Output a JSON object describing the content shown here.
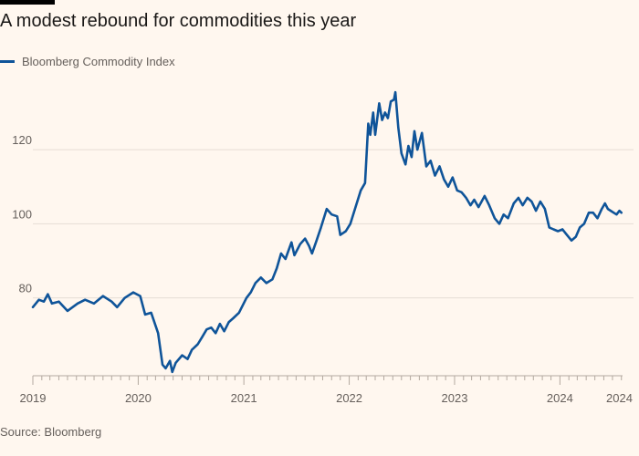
{
  "title": "A modest rebound for commodities this year",
  "source": "Source: Bloomberg",
  "colors": {
    "background": "#fff7ef",
    "line": "#0f5499",
    "grid": "#e6ddd4",
    "text": "#66605c"
  },
  "chart_data": {
    "type": "line",
    "title": "A modest rebound for commodities this year",
    "xlabel": "",
    "ylabel": "",
    "legend": {
      "placement": "top-left"
    },
    "grid": true,
    "ylim": [
      59,
      137
    ],
    "xlim": [
      "2019-01-01",
      "2024-08-05"
    ],
    "y_ticks": [
      80,
      100,
      120
    ],
    "x_ticks": [
      "2019",
      "2020",
      "2021",
      "2022",
      "2023",
      "2024",
      "2024"
    ],
    "x_tick_dates": [
      "2019-01-01",
      "2020-01-01",
      "2021-01-01",
      "2022-01-01",
      "2023-01-01",
      "2024-01-01",
      "2024-07-25"
    ],
    "series": [
      {
        "name": "Bloomberg Commodity Index",
        "color": "#0f5499",
        "points": [
          [
            "2019-01-01",
            77.5
          ],
          [
            "2019-01-22",
            79.5
          ],
          [
            "2019-02-08",
            79.0
          ],
          [
            "2019-02-22",
            81.0
          ],
          [
            "2019-03-08",
            78.5
          ],
          [
            "2019-04-01",
            79.0
          ],
          [
            "2019-05-01",
            76.5
          ],
          [
            "2019-06-05",
            78.5
          ],
          [
            "2019-07-01",
            79.5
          ],
          [
            "2019-08-01",
            78.5
          ],
          [
            "2019-09-01",
            80.5
          ],
          [
            "2019-10-01",
            79.0
          ],
          [
            "2019-10-20",
            77.5
          ],
          [
            "2019-11-15",
            80.0
          ],
          [
            "2019-12-15",
            81.5
          ],
          [
            "2020-01-08",
            80.5
          ],
          [
            "2020-01-25",
            75.5
          ],
          [
            "2020-02-15",
            76.0
          ],
          [
            "2020-03-01",
            72.5
          ],
          [
            "2020-03-10",
            70.5
          ],
          [
            "2020-03-25",
            62.0
          ],
          [
            "2020-04-05",
            61.0
          ],
          [
            "2020-04-20",
            63.0
          ],
          [
            "2020-04-28",
            60.0
          ],
          [
            "2020-05-10",
            62.5
          ],
          [
            "2020-06-01",
            64.5
          ],
          [
            "2020-06-20",
            63.5
          ],
          [
            "2020-07-05",
            66.0
          ],
          [
            "2020-07-25",
            67.5
          ],
          [
            "2020-08-10",
            69.5
          ],
          [
            "2020-08-25",
            71.5
          ],
          [
            "2020-09-10",
            72.0
          ],
          [
            "2020-09-25",
            70.5
          ],
          [
            "2020-10-10",
            73.0
          ],
          [
            "2020-10-25",
            71.0
          ],
          [
            "2020-11-10",
            73.5
          ],
          [
            "2020-11-25",
            74.5
          ],
          [
            "2020-12-15",
            76.0
          ],
          [
            "2021-01-10",
            80.0
          ],
          [
            "2021-01-25",
            81.5
          ],
          [
            "2021-02-10",
            84.0
          ],
          [
            "2021-03-01",
            85.5
          ],
          [
            "2021-03-20",
            84.0
          ],
          [
            "2021-04-10",
            85.0
          ],
          [
            "2021-04-25",
            88.0
          ],
          [
            "2021-05-10",
            92.0
          ],
          [
            "2021-05-25",
            90.5
          ],
          [
            "2021-06-15",
            95.0
          ],
          [
            "2021-06-25",
            91.5
          ],
          [
            "2021-07-15",
            94.5
          ],
          [
            "2021-08-01",
            96.0
          ],
          [
            "2021-08-15",
            94.0
          ],
          [
            "2021-08-25",
            92.0
          ],
          [
            "2021-09-10",
            95.5
          ],
          [
            "2021-09-25",
            99.0
          ],
          [
            "2021-10-15",
            104.0
          ],
          [
            "2021-11-01",
            102.5
          ],
          [
            "2021-11-20",
            102.0
          ],
          [
            "2021-12-01",
            97.0
          ],
          [
            "2021-12-20",
            98.0
          ],
          [
            "2022-01-05",
            100.0
          ],
          [
            "2022-01-25",
            105.0
          ],
          [
            "2022-02-10",
            109.0
          ],
          [
            "2022-02-25",
            111.0
          ],
          [
            "2022-03-08",
            127.0
          ],
          [
            "2022-03-15",
            124.0
          ],
          [
            "2022-03-25",
            130.0
          ],
          [
            "2022-04-01",
            124.0
          ],
          [
            "2022-04-15",
            132.5
          ],
          [
            "2022-04-25",
            128.0
          ],
          [
            "2022-05-05",
            130.0
          ],
          [
            "2022-05-15",
            128.5
          ],
          [
            "2022-05-25",
            133.0
          ],
          [
            "2022-06-05",
            133.5
          ],
          [
            "2022-06-10",
            135.5
          ],
          [
            "2022-06-20",
            126.0
          ],
          [
            "2022-07-01",
            119.0
          ],
          [
            "2022-07-15",
            116.0
          ],
          [
            "2022-07-25",
            121.0
          ],
          [
            "2022-08-05",
            118.0
          ],
          [
            "2022-08-15",
            125.0
          ],
          [
            "2022-08-25",
            120.0
          ],
          [
            "2022-09-10",
            124.5
          ],
          [
            "2022-09-25",
            115.5
          ],
          [
            "2022-10-10",
            117.0
          ],
          [
            "2022-10-25",
            113.0
          ],
          [
            "2022-11-10",
            115.5
          ],
          [
            "2022-11-25",
            112.0
          ],
          [
            "2022-12-10",
            110.0
          ],
          [
            "2022-12-25",
            112.5
          ],
          [
            "2023-01-10",
            109.0
          ],
          [
            "2023-01-25",
            108.5
          ],
          [
            "2023-02-10",
            107.0
          ],
          [
            "2023-02-25",
            105.0
          ],
          [
            "2023-03-10",
            106.5
          ],
          [
            "2023-03-25",
            104.5
          ],
          [
            "2023-04-15",
            107.5
          ],
          [
            "2023-05-01",
            105.0
          ],
          [
            "2023-05-20",
            101.5
          ],
          [
            "2023-06-05",
            100.0
          ],
          [
            "2023-06-20",
            102.5
          ],
          [
            "2023-07-05",
            101.5
          ],
          [
            "2023-07-25",
            105.5
          ],
          [
            "2023-08-10",
            107.0
          ],
          [
            "2023-08-25",
            105.0
          ],
          [
            "2023-09-10",
            107.0
          ],
          [
            "2023-09-25",
            106.0
          ],
          [
            "2023-10-10",
            103.5
          ],
          [
            "2023-10-25",
            106.0
          ],
          [
            "2023-11-10",
            104.0
          ],
          [
            "2023-11-25",
            99.0
          ],
          [
            "2023-12-10",
            98.5
          ],
          [
            "2023-12-25",
            98.0
          ],
          [
            "2024-01-10",
            98.5
          ],
          [
            "2024-01-25",
            97.0
          ],
          [
            "2024-02-10",
            95.5
          ],
          [
            "2024-02-25",
            96.5
          ],
          [
            "2024-03-10",
            99.0
          ],
          [
            "2024-03-25",
            100.0
          ],
          [
            "2024-04-10",
            103.0
          ],
          [
            "2024-04-25",
            103.0
          ],
          [
            "2024-05-10",
            101.5
          ],
          [
            "2024-05-25",
            104.0
          ],
          [
            "2024-06-05",
            105.5
          ],
          [
            "2024-06-15",
            104.0
          ],
          [
            "2024-06-25",
            103.5
          ],
          [
            "2024-07-05",
            103.0
          ],
          [
            "2024-07-15",
            102.5
          ],
          [
            "2024-07-25",
            103.5
          ],
          [
            "2024-08-01",
            103.0
          ]
        ]
      }
    ]
  }
}
